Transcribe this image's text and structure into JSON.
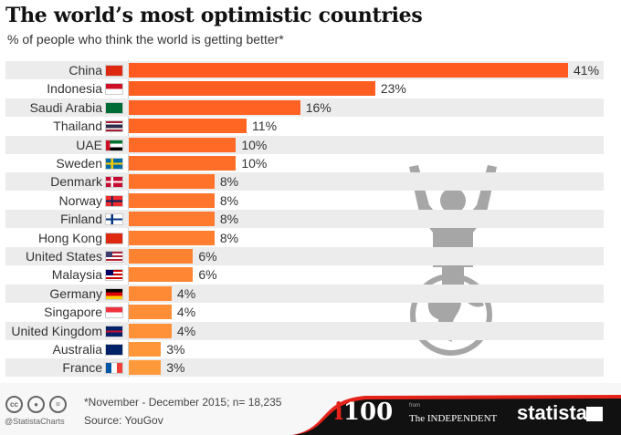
{
  "header": {
    "title": "The world’s most optimistic countries",
    "subtitle": "% of people who think the world is getting better*"
  },
  "chart_data": {
    "type": "bar",
    "orientation": "horizontal",
    "title": "The world’s most optimistic countries",
    "subtitle": "% of people who think the world is getting better*",
    "xlabel": "",
    "ylabel": "",
    "xlim": [
      0,
      41
    ],
    "categories": [
      "China",
      "Indonesia",
      "Saudi Arabia",
      "Thailand",
      "UAE",
      "Sweden",
      "Denmark",
      "Norway",
      "Finland",
      "Hong Kong",
      "United States",
      "Malaysia",
      "Germany",
      "Singapore",
      "United Kingdom",
      "Australia",
      "France"
    ],
    "values": [
      41,
      23,
      16,
      11,
      10,
      10,
      8,
      8,
      8,
      8,
      6,
      6,
      4,
      4,
      4,
      3,
      3
    ],
    "value_labels": [
      "41%",
      "23%",
      "16%",
      "11%",
      "10%",
      "10%",
      "8%",
      "8%",
      "8%",
      "8%",
      "6%",
      "6%",
      "4%",
      "4%",
      "4%",
      "3%",
      "3%"
    ]
  },
  "colors": {
    "bar_dark": "#ff5a1f",
    "bar_light": "#ff9a3c",
    "illustration": "#a6a6a6"
  },
  "footer": {
    "note": "*November - December 2015; n= 18,235",
    "source": "Source: YouGov",
    "handle": "@StatistaCharts",
    "cc_icons": [
      "cc",
      "by",
      "nd"
    ],
    "i100_prefix": "i",
    "i100_number": "100",
    "from": "from",
    "independent": "The INDEPENDENT",
    "statista": "statista"
  }
}
